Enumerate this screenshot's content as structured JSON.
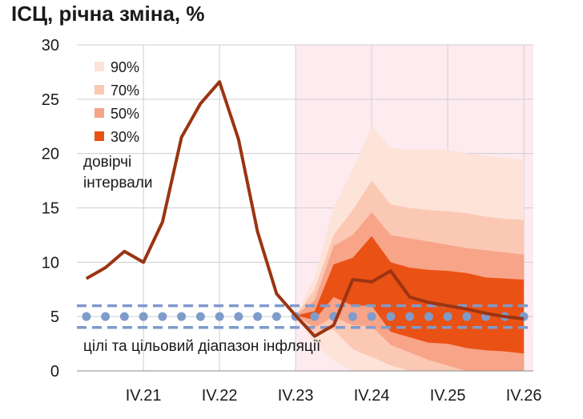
{
  "chart_data": {
    "type": "line",
    "title": "ІСЦ, річна зміна, %",
    "ylim": [
      0,
      30
    ],
    "yticks": [
      0,
      5,
      10,
      15,
      20,
      25,
      30
    ],
    "grid": true,
    "x_quarters": [
      "I.21",
      "II.21",
      "III.21",
      "IV.21",
      "I.22",
      "II.22",
      "III.22",
      "IV.22",
      "I.23",
      "II.23",
      "III.23",
      "IV.23",
      "I.24",
      "II.24",
      "III.24",
      "IV.24",
      "I.25",
      "II.25",
      "III.25",
      "IV.25",
      "I.26",
      "II.26",
      "III.26",
      "IV.26"
    ],
    "x_tick_labels": [
      "IV.21",
      "IV.22",
      "IV.23",
      "IV.24",
      "IV.25",
      "IV.26"
    ],
    "forecast_start": "IV.23",
    "series": [
      {
        "kind": "cpi-line",
        "color": "#9b3412",
        "x": [
          "I.21",
          "II.21",
          "III.21",
          "IV.21",
          "I.22",
          "II.22",
          "III.22",
          "IV.22",
          "I.23",
          "II.23",
          "III.23",
          "IV.23",
          "I.24",
          "II.24",
          "III.24",
          "IV.24",
          "I.25",
          "II.25",
          "III.25",
          "IV.25",
          "I.26",
          "II.26",
          "III.26",
          "IV.26"
        ],
        "values": [
          8.5,
          9.5,
          11.0,
          10.0,
          13.7,
          21.5,
          24.6,
          26.6,
          21.3,
          12.8,
          7.1,
          5.1,
          3.2,
          4.2,
          8.4,
          8.2,
          9.2,
          6.8,
          6.3,
          6.0,
          5.7,
          5.3,
          5.0,
          4.8
        ]
      }
    ],
    "fan_x": [
      "IV.23",
      "I.24",
      "II.24",
      "III.24",
      "IV.24",
      "I.25",
      "II.25",
      "III.25",
      "IV.25",
      "I.26",
      "II.26",
      "III.26",
      "IV.26"
    ],
    "fan_bands": [
      {
        "label": "90%",
        "color": "#fde3d8",
        "upper": [
          5.1,
          8.5,
          15.0,
          18.5,
          22.5,
          20.5,
          20.4,
          20.4,
          20.3,
          20.0,
          19.8,
          19.6,
          19.4
        ],
        "lower": [
          5.1,
          2.5,
          1.0,
          0.0,
          0.0,
          0.0,
          0.0,
          0.0,
          0.0,
          0.0,
          0.0,
          0.0,
          0.0
        ]
      },
      {
        "label": "70%",
        "color": "#fbc8b4",
        "upper": [
          5.1,
          7.5,
          12.5,
          14.8,
          17.5,
          15.3,
          15.0,
          14.8,
          14.7,
          14.5,
          14.2,
          14.0,
          13.9
        ],
        "lower": [
          5.1,
          3.5,
          3.8,
          2.0,
          1.3,
          0.5,
          0.0,
          0.0,
          0.0,
          0.0,
          0.0,
          0.0,
          0.0
        ]
      },
      {
        "label": "50%",
        "color": "#f7a488",
        "upper": [
          5.1,
          6.5,
          11.5,
          12.5,
          14.6,
          12.5,
          12.2,
          11.9,
          11.6,
          11.3,
          11.1,
          10.9,
          10.7
        ],
        "lower": [
          5.1,
          4.0,
          5.0,
          4.2,
          4.1,
          2.4,
          1.7,
          1.0,
          0.5,
          0.0,
          0.0,
          0.0,
          0.0
        ]
      },
      {
        "label": "30%",
        "color": "#ea5114",
        "upper": [
          5.1,
          5.5,
          9.8,
          10.4,
          12.4,
          10.0,
          9.5,
          9.3,
          9.2,
          9.0,
          8.6,
          8.5,
          8.4
        ],
        "lower": [
          5.1,
          4.7,
          6.8,
          6.0,
          6.0,
          3.6,
          3.1,
          2.6,
          2.5,
          2.1,
          1.9,
          1.8,
          1.6
        ]
      }
    ],
    "target": {
      "value": 5,
      "range": [
        4,
        6
      ],
      "color": "#7f9bcb"
    },
    "legend": {
      "position": "top-left",
      "entries": [
        "90%",
        "70%",
        "50%",
        "30%"
      ],
      "caption": [
        "довірчі",
        "інтервали"
      ]
    },
    "annotation": "цілі та цільовий діапазон інфляції"
  }
}
